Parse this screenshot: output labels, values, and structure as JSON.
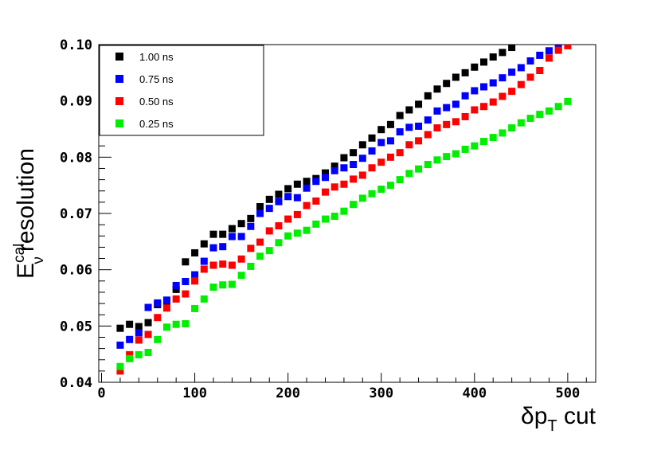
{
  "chart_data": {
    "type": "scatter",
    "xlabel_main": "δp",
    "xlabel_sub": "T",
    "xlabel_tail": " cut",
    "ylabel_main": "E",
    "ylabel_sup": "cal",
    "ylabel_sub": "ν",
    "ylabel_tail": "resolution",
    "xlim": [
      -3,
      530
    ],
    "ylim": [
      0.04,
      0.1
    ],
    "xticks": [
      0,
      100,
      200,
      300,
      400,
      500
    ],
    "xtick_labels": [
      "0",
      "100",
      "200",
      "300",
      "400",
      "500"
    ],
    "yticks": [
      0.04,
      0.05,
      0.06,
      0.07,
      0.08,
      0.09,
      0.1
    ],
    "ytick_labels": [
      "0.04",
      "0.05",
      "0.06",
      "0.07",
      "0.08",
      "0.09",
      "0.10"
    ],
    "legend_position": "top-left",
    "x": [
      20,
      30,
      40,
      50,
      60,
      70,
      80,
      90,
      100,
      110,
      120,
      130,
      140,
      150,
      160,
      170,
      180,
      190,
      200,
      210,
      220,
      230,
      240,
      250,
      260,
      270,
      280,
      290,
      300,
      310,
      320,
      330,
      340,
      350,
      360,
      370,
      380,
      390,
      400,
      410,
      420,
      430,
      440,
      450,
      460,
      470,
      480,
      490,
      500
    ],
    "series": [
      {
        "name": "1.00 ns",
        "color": "#000000",
        "values": [
          0.0496,
          0.0503,
          0.0499,
          0.0506,
          0.0538,
          0.0543,
          0.0565,
          0.0614,
          0.063,
          0.0646,
          0.0663,
          0.0663,
          0.0673,
          0.0682,
          0.0691,
          0.0712,
          0.0725,
          0.0734,
          0.0744,
          0.0752,
          0.0757,
          0.0762,
          0.0772,
          0.0784,
          0.0799,
          0.0808,
          0.0822,
          0.0834,
          0.0849,
          0.0858,
          0.0874,
          0.0884,
          0.0894,
          0.0909,
          0.0921,
          0.0931,
          0.0942,
          0.095,
          0.096,
          0.0969,
          0.0978,
          0.0986,
          0.0995,
          null,
          null,
          null,
          null,
          null,
          null
        ]
      },
      {
        "name": "0.75 ns",
        "color": "#0000ff",
        "values": [
          0.0466,
          0.0476,
          0.0488,
          0.0533,
          0.0541,
          0.0546,
          0.0572,
          0.0579,
          0.0591,
          0.0615,
          0.0639,
          0.0641,
          0.0659,
          0.0659,
          0.0677,
          0.07,
          0.0709,
          0.0721,
          0.073,
          0.0728,
          0.0745,
          0.0757,
          0.0764,
          0.0776,
          0.0781,
          0.0787,
          0.0798,
          0.0811,
          0.0826,
          0.0829,
          0.0845,
          0.0853,
          0.0855,
          0.0866,
          0.0882,
          0.0888,
          0.0894,
          0.0909,
          0.0918,
          0.0925,
          0.0932,
          0.0941,
          0.0951,
          0.0959,
          0.0971,
          0.0981,
          0.0989,
          0.0996,
          null
        ]
      },
      {
        "name": "0.50 ns",
        "color": "#ff0000",
        "values": [
          0.042,
          0.0449,
          0.0475,
          0.0485,
          0.0515,
          0.0532,
          0.0548,
          0.0557,
          0.058,
          0.0601,
          0.0608,
          0.061,
          0.0608,
          0.0619,
          0.0638,
          0.0649,
          0.0669,
          0.0678,
          0.069,
          0.0698,
          0.0714,
          0.0722,
          0.0738,
          0.0747,
          0.0752,
          0.0761,
          0.0768,
          0.0781,
          0.0791,
          0.08,
          0.0808,
          0.0822,
          0.0829,
          0.084,
          0.0852,
          0.0858,
          0.0863,
          0.0872,
          0.0884,
          0.089,
          0.0898,
          0.0908,
          0.0917,
          0.0929,
          0.0942,
          0.0954,
          0.0976,
          0.099,
          0.0998
        ]
      },
      {
        "name": "0.25 ns",
        "color": "#00ee00",
        "values": [
          0.0428,
          0.0442,
          0.0449,
          0.0453,
          0.0476,
          0.0498,
          0.0503,
          0.0504,
          0.0531,
          0.0548,
          0.0569,
          0.0573,
          0.0574,
          0.059,
          0.0606,
          0.0624,
          0.0634,
          0.0648,
          0.066,
          0.0665,
          0.067,
          0.0681,
          0.069,
          0.0695,
          0.0704,
          0.0716,
          0.0727,
          0.0735,
          0.0743,
          0.075,
          0.076,
          0.0771,
          0.0779,
          0.0787,
          0.0795,
          0.0801,
          0.0806,
          0.0814,
          0.082,
          0.0828,
          0.0835,
          0.0843,
          0.0852,
          0.0861,
          0.0869,
          0.0876,
          0.0882,
          0.089,
          0.0899
        ]
      }
    ]
  }
}
